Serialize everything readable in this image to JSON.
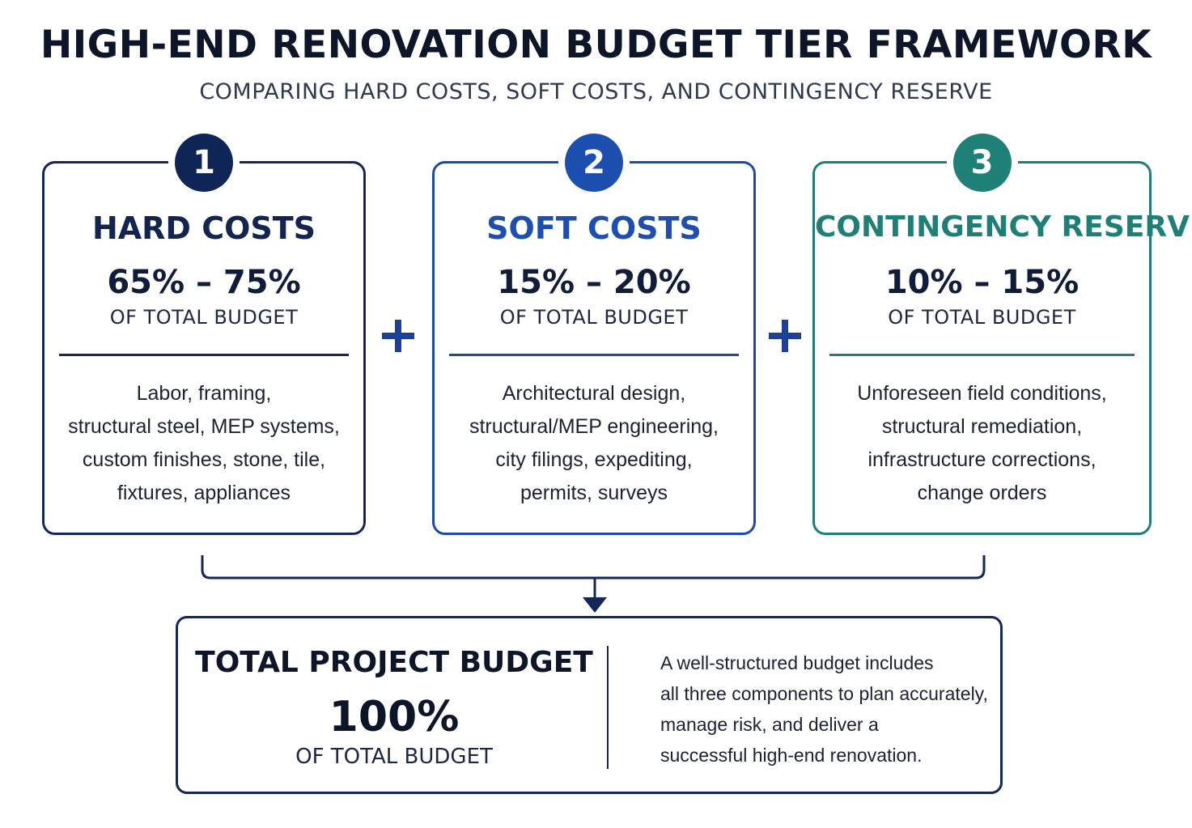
{
  "title": "HIGH-END RENOVATION BUDGET TIER FRAMEWORK",
  "subtitle": "COMPARING HARD COSTS, SOFT COSTS, AND CONTINGENCY RESERVE",
  "tiers": [
    {
      "number": "1",
      "heading": "HARD COSTS",
      "range": "65% – 75%",
      "of_label": "OF TOTAL BUDGET",
      "description_lines": [
        "Labor, framing,",
        "structural steel, MEP systems,",
        "custom finishes, stone, tile,",
        "fixtures, appliances"
      ],
      "color": "#14275a"
    },
    {
      "number": "2",
      "heading": "SOFT COSTS",
      "range": "15% – 20%",
      "of_label": "OF TOTAL BUDGET",
      "description_lines": [
        "Architectural design,",
        "structural/MEP engineering,",
        "city filings, expediting,",
        "permits, surveys"
      ],
      "color": "#1d4fb0"
    },
    {
      "number": "3",
      "heading": "CONTINGENCY RESERVE",
      "range": "10% – 15%",
      "of_label": "OF TOTAL BUDGET",
      "description_lines": [
        "Unforeseen field conditions,",
        "structural remediation,",
        "infrastructure corrections,",
        "change orders"
      ],
      "color": "#1e8076"
    }
  ],
  "operator_icon": "plus-icon",
  "total": {
    "heading": "TOTAL PROJECT BUDGET",
    "value": "100%",
    "of_label": "OF TOTAL BUDGET",
    "note_lines": [
      "A well-structured budget includes",
      "all three components to plan accurately,",
      "manage risk, and deliver a",
      "successful high-end renovation."
    ]
  }
}
